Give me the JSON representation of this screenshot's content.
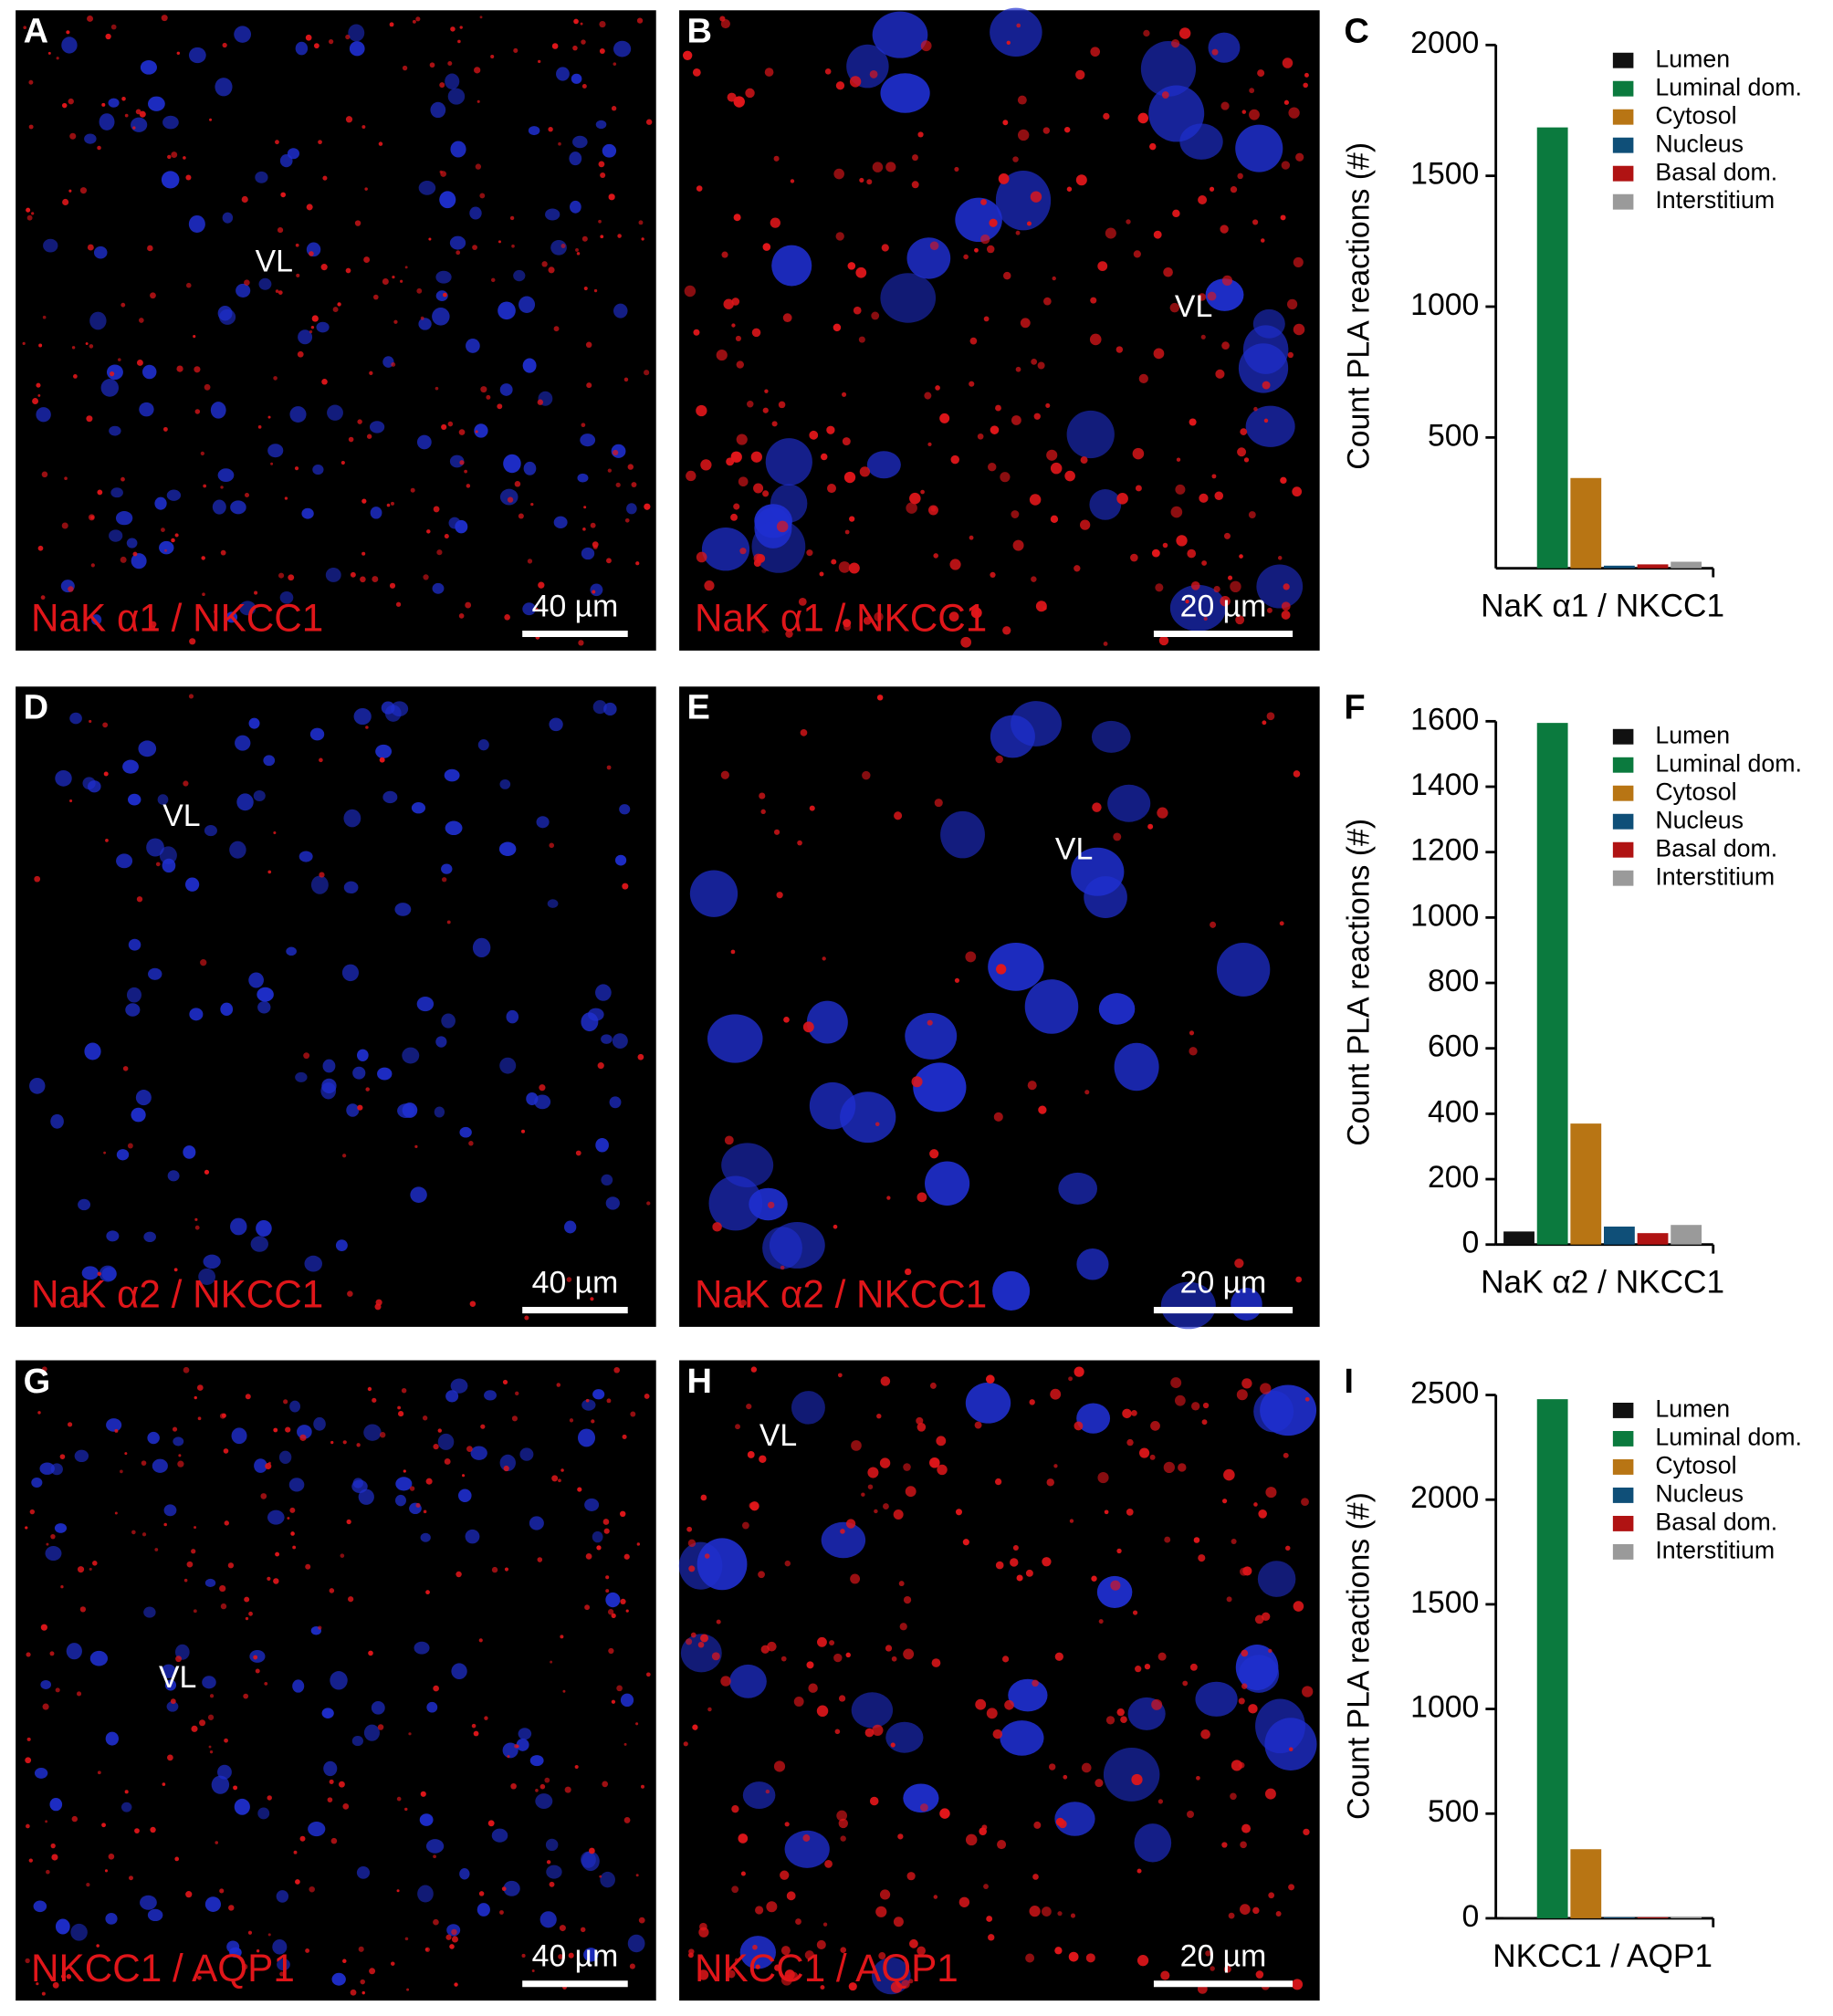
{
  "panels": [
    {
      "letter": "A",
      "label": "NaK α1 / NKCC1",
      "scale": "40 µm",
      "region": "VL"
    },
    {
      "letter": "B",
      "label": "NaK α1 / NKCC1",
      "scale": "20 µm",
      "region": "VL"
    },
    {
      "letter": "D",
      "label": "NaK α2 / NKCC1",
      "scale": "40 µm",
      "region": "VL"
    },
    {
      "letter": "E",
      "label": "NaK α2 / NKCC1",
      "scale": "20 µm",
      "region": "VL"
    },
    {
      "letter": "G",
      "label": "NKCC1 / AQP1",
      "scale": "40 µm",
      "region": "VL"
    },
    {
      "letter": "H",
      "label": "NKCC1 / AQP1",
      "scale": "20 µm",
      "region": "VL"
    }
  ],
  "chart_data": [
    {
      "type": "bar",
      "panel_label": "C",
      "y_label": "Count PLA reactions (#)",
      "categories": [
        "NaK α1 / NKCC1"
      ],
      "ylim": [
        0,
        2000
      ],
      "yticks": [
        500,
        1000,
        1500,
        2000
      ],
      "series": [
        {
          "name": "Lumen",
          "color": "#111111",
          "values": [
            2
          ]
        },
        {
          "name": "Luminal dom.",
          "color": "#0b7a3e",
          "values": [
            1685
          ]
        },
        {
          "name": "Cytosol",
          "color": "#b87514",
          "values": [
            345
          ]
        },
        {
          "name": "Nucleus",
          "color": "#0f4f78",
          "values": [
            10
          ]
        },
        {
          "name": "Basal dom.",
          "color": "#b01313",
          "values": [
            15
          ]
        },
        {
          "name": "Interstitium",
          "color": "#9a9a9a",
          "values": [
            25
          ]
        }
      ]
    },
    {
      "type": "bar",
      "panel_label": "F",
      "y_label": "Count PLA reactions (#)",
      "categories": [
        "NaK α2 / NKCC1"
      ],
      "ylim": [
        0,
        1600
      ],
      "yticks": [
        0,
        200,
        400,
        600,
        800,
        1000,
        1200,
        1400,
        1600
      ],
      "series": [
        {
          "name": "Lumen",
          "color": "#111111",
          "values": [
            40
          ]
        },
        {
          "name": "Luminal dom.",
          "color": "#0b7a3e",
          "values": [
            1595
          ]
        },
        {
          "name": "Cytosol",
          "color": "#b87514",
          "values": [
            370
          ]
        },
        {
          "name": "Nucleus",
          "color": "#0f4f78",
          "values": [
            55
          ]
        },
        {
          "name": "Basal dom.",
          "color": "#b01313",
          "values": [
            35
          ]
        },
        {
          "name": "Interstitium",
          "color": "#9a9a9a",
          "values": [
            60
          ]
        }
      ]
    },
    {
      "type": "bar",
      "panel_label": "I",
      "y_label": "Count PLA reactions (#)",
      "categories": [
        "NKCC1 / AQP1"
      ],
      "ylim": [
        0,
        2500
      ],
      "yticks": [
        0,
        500,
        1000,
        1500,
        2000,
        2500
      ],
      "series": [
        {
          "name": "Lumen",
          "color": "#111111",
          "values": [
            5
          ]
        },
        {
          "name": "Luminal dom.",
          "color": "#0b7a3e",
          "values": [
            2480
          ]
        },
        {
          "name": "Cytosol",
          "color": "#b87514",
          "values": [
            330
          ]
        },
        {
          "name": "Nucleus",
          "color": "#0f4f78",
          "values": [
            5
          ]
        },
        {
          "name": "Basal dom.",
          "color": "#b01313",
          "values": [
            5
          ]
        },
        {
          "name": "Interstitium",
          "color": "#9a9a9a",
          "values": [
            5
          ]
        }
      ]
    }
  ]
}
